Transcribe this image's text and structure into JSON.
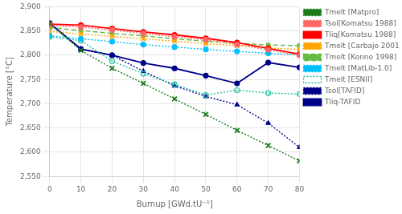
{
  "chart_data": {
    "type": "line",
    "x": [
      0,
      10,
      20,
      30,
      40,
      50,
      60,
      70,
      80
    ],
    "series": [
      {
        "name": "Tmelt [Matpro]",
        "color": "#1a7a1a",
        "marker": "x",
        "line_style": "dotted",
        "values": [
          2865,
          2810,
          2773,
          2742,
          2710,
          2678,
          2645,
          2614,
          2582
        ]
      },
      {
        "name": "Tsol[Komatsu 1988]",
        "color": "#ff6666",
        "marker": "circle",
        "line_style": "dotted",
        "values": [
          2861,
          2858,
          2852,
          2845,
          2838,
          2832,
          2822,
          2811,
          2800
        ]
      },
      {
        "name": "Tliq[Komatsu 1988]",
        "color": "#ff0000",
        "marker": "circle",
        "line_style": "solid",
        "values": [
          2864,
          2862,
          2855,
          2848,
          2842,
          2835,
          2826,
          2814,
          2802
        ]
      },
      {
        "name": "Tmelt [Carbajo 2001]",
        "color": "#ffa500",
        "marker": "x",
        "line_style": "dotted",
        "values": [
          2849,
          2844,
          2839,
          2834,
          2829,
          2824,
          2820,
          2815,
          2812
        ]
      },
      {
        "name": "Tmelt [Konno 1998]",
        "color": "#66bb44",
        "marker": "square",
        "line_style": "dashed",
        "values": [
          2857,
          2851,
          2845,
          2840,
          2834,
          2829,
          2825,
          2821,
          2820
        ]
      },
      {
        "name": "Tmelt [MatLib-1.0]",
        "color": "#00bfff",
        "marker": "circle",
        "line_style": "dotted",
        "values": [
          2840,
          2834,
          2828,
          2822,
          2817,
          2812,
          2808,
          2804,
          2801
        ]
      },
      {
        "name": "Tmelt [ESNII]",
        "color": "#20c0a0",
        "marker": "open circle",
        "line_style": "dotted",
        "values": [
          2838,
          2830,
          2788,
          2762,
          2740,
          2718,
          2728,
          2722,
          2720
        ]
      },
      {
        "name": "Tsol[TAFID]",
        "color": "#00008b",
        "marker": "triangle",
        "line_style": "dotted",
        "values": [
          2866,
          2812,
          2800,
          2767,
          2737,
          2715,
          2698,
          2660,
          2610
        ]
      },
      {
        "name": "Tliq-TAFID",
        "color": "#00008b",
        "marker": "circle",
        "line_style": "solid",
        "values": [
          2866,
          2813,
          2800,
          2784,
          2773,
          2758,
          2742,
          2785,
          2775
        ]
      }
    ],
    "xlabel": "Burnup [GWd.tU⁻¹]",
    "ylabel": "Temperature [°C]",
    "xlim": [
      0,
      80
    ],
    "ylim": [
      2550,
      2900
    ],
    "xticks": [
      0,
      10,
      20,
      30,
      40,
      50,
      60,
      70,
      80
    ],
    "yticks": [
      2550,
      2600,
      2650,
      2700,
      2750,
      2800,
      2850,
      2900
    ],
    "grid": true,
    "legend": "right"
  }
}
